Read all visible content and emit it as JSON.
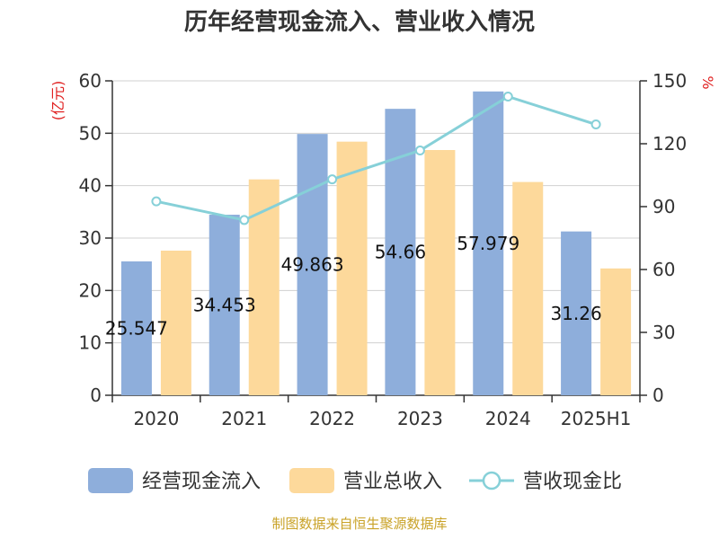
{
  "chart_data": {
    "type": "bar",
    "title": "历年经营现金流入、营业收入情况",
    "categories": [
      "2020",
      "2021",
      "2022",
      "2023",
      "2024",
      "2025H1"
    ],
    "left_axis": {
      "unit": "(亿元)",
      "ylim": [
        0,
        60
      ],
      "ticks": [
        0,
        10,
        20,
        30,
        40,
        50,
        60
      ]
    },
    "right_axis": {
      "unit": "%",
      "ylim": [
        0,
        150
      ],
      "ticks": [
        0,
        30,
        60,
        90,
        120,
        150
      ]
    },
    "series": [
      {
        "name": "经营现金流入",
        "kind": "bar",
        "axis": "left",
        "color": "#8eaedb",
        "values": [
          25.547,
          34.453,
          49.863,
          54.66,
          57.979,
          31.26
        ],
        "labels": [
          "25.547",
          "34.453",
          "49.863",
          "54.66",
          "57.979",
          "31.26"
        ]
      },
      {
        "name": "营业总收入",
        "kind": "bar",
        "axis": "left",
        "color": "#fdd99b",
        "values": [
          27.6,
          41.2,
          48.4,
          46.8,
          40.7,
          24.2
        ]
      },
      {
        "name": "营收现金比",
        "kind": "line",
        "axis": "right",
        "color": "#86d0d8",
        "values": [
          92.5,
          83.6,
          103.0,
          116.8,
          142.5,
          129.2
        ]
      }
    ],
    "grid": true,
    "legend_position": "bottom",
    "source": "制图数据来自恒生聚源数据库"
  }
}
